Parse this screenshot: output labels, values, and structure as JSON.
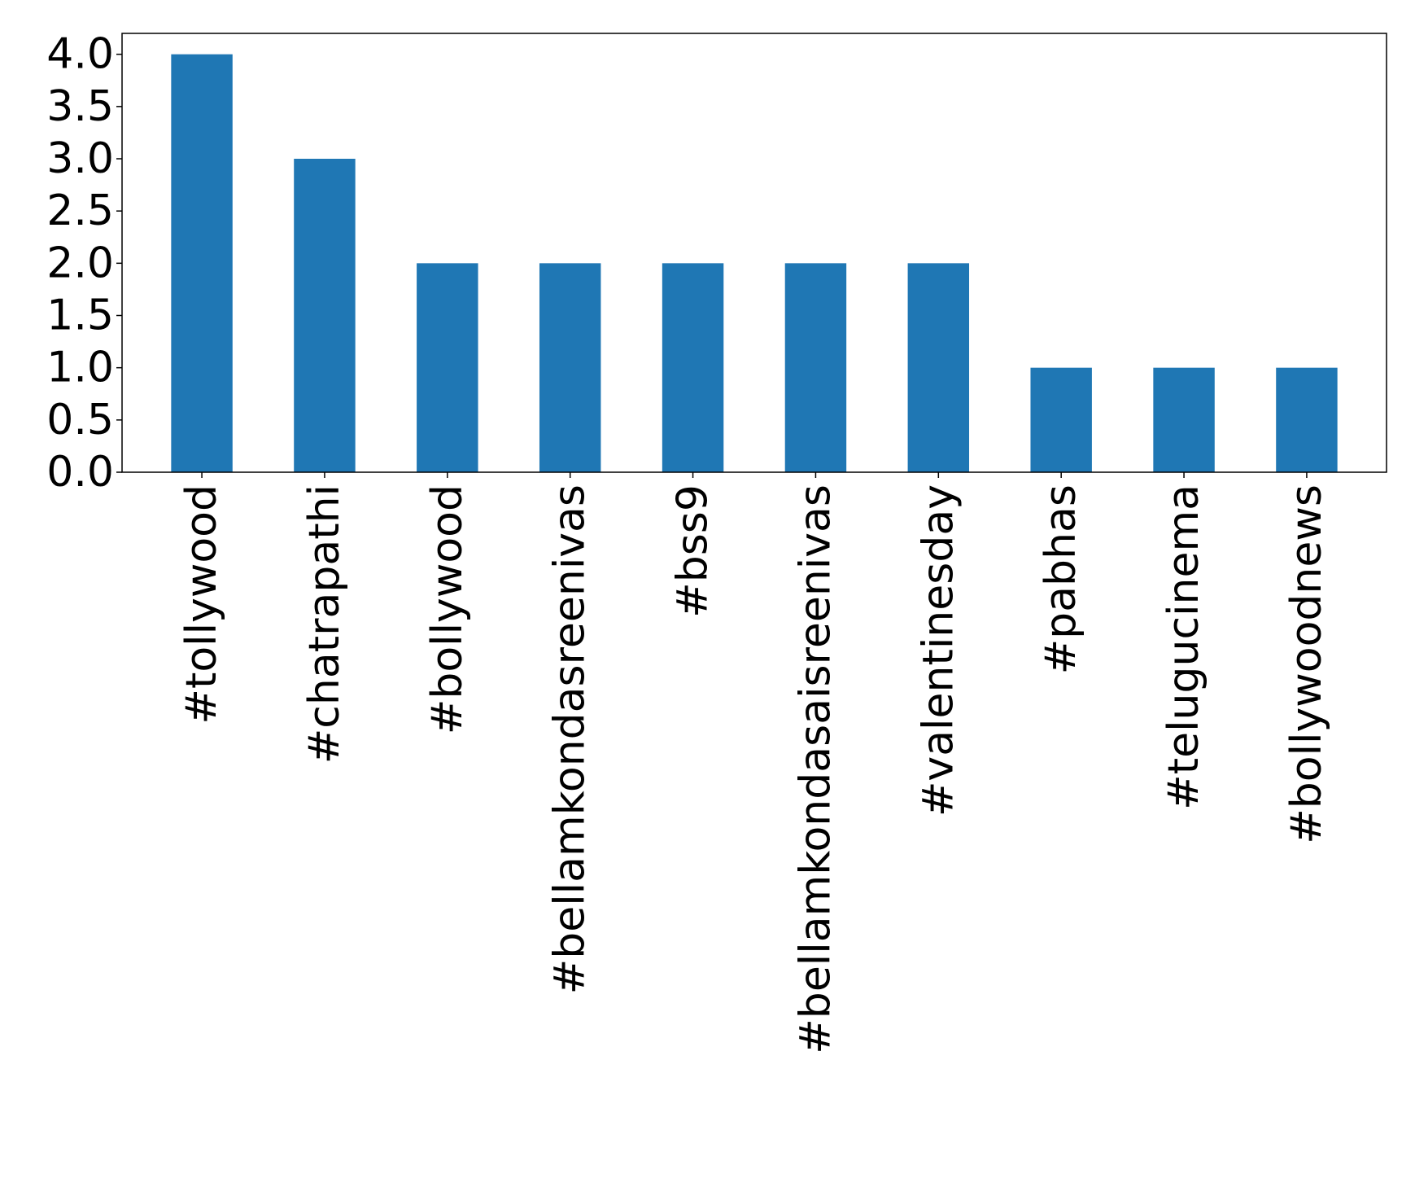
{
  "chart_data": {
    "type": "bar",
    "categories": [
      "#tollywood",
      "#chatrapathi",
      "#bollywood",
      "#bellamkondasreenivas",
      "#bss9",
      "#bellamkondasaisreenivas",
      "#valentinesday",
      "#pabhas",
      "#telugucinema",
      "#bollywoodnews"
    ],
    "values": [
      4,
      3,
      2,
      2,
      2,
      2,
      2,
      1,
      1,
      1
    ],
    "yticks": [
      "0.0",
      "0.5",
      "1.0",
      "1.5",
      "2.0",
      "2.5",
      "3.0",
      "3.5",
      "4.0"
    ],
    "ylim": [
      0,
      4.2
    ],
    "bar_color": "#1f77b4",
    "grid": false,
    "title": "",
    "xlabel": "",
    "ylabel": ""
  }
}
